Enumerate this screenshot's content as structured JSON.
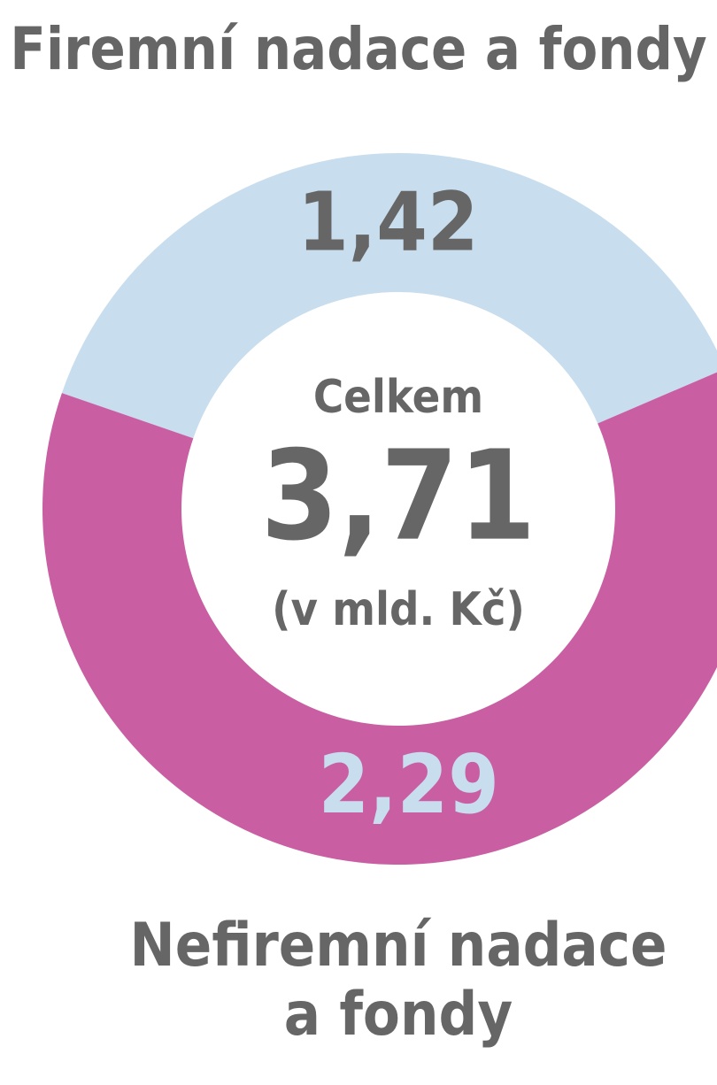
{
  "chart_data": {
    "type": "donut",
    "categories": [
      "Firemní nadace a fondy",
      "Nefiremní nadace a fondy"
    ],
    "values": [
      1.42,
      2.29
    ],
    "value_labels": [
      "1,42",
      "2,29"
    ],
    "colors": [
      "#c8dded",
      "#c95fa2"
    ],
    "value_label_colors": [
      "#666666",
      "#c8dded"
    ],
    "annotations": [
      "Celkem",
      "3,71",
      "(v mld. Kč)"
    ]
  }
}
